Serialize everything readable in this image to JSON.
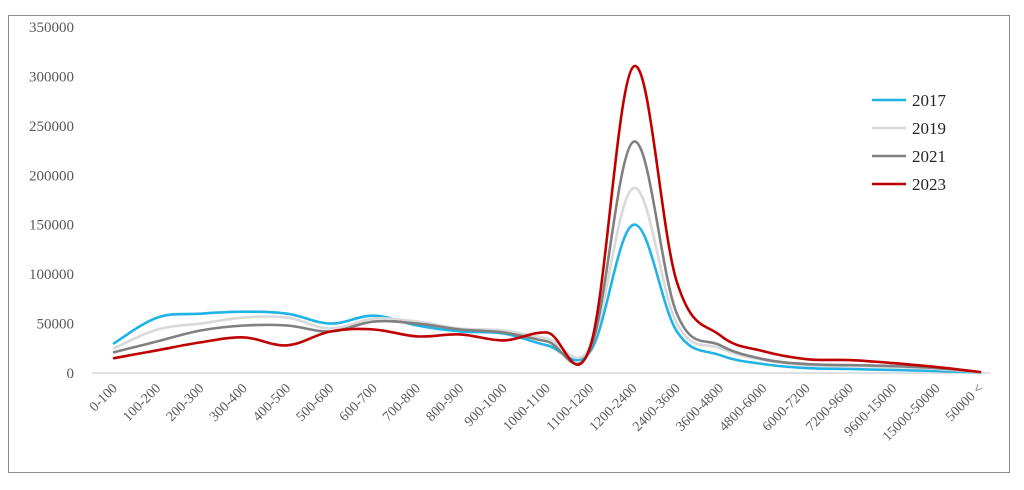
{
  "chart_data": {
    "type": "line",
    "categories": [
      "0-100",
      "100-200",
      "200-300",
      "300-400",
      "400-500",
      "500-600",
      "600-700",
      "700-800",
      "800-900",
      "900-1000",
      "1000-1100",
      "1100-1200",
      "1200-2400",
      "2400-3600",
      "3600-4800",
      "4800-6000",
      "6000-7200",
      "7200-9600",
      "9600-15000",
      "15000-50000",
      "50000 <"
    ],
    "ylim": [
      0,
      350000
    ],
    "yticks": [
      "0",
      "50000",
      "100000",
      "150000",
      "200000",
      "250000",
      "300000",
      "350000"
    ],
    "grid": false,
    "legend_position": "right",
    "series": [
      {
        "name": "2017",
        "color": "#1fb3e6",
        "values": [
          30000,
          56000,
          60000,
          62000,
          60000,
          50000,
          58000,
          48000,
          42000,
          40000,
          28000,
          22000,
          150000,
          42000,
          18000,
          9000,
          5000,
          4000,
          3000,
          2000,
          500
        ]
      },
      {
        "name": "2019",
        "color": "#d9d9d9",
        "values": [
          25000,
          44000,
          50000,
          56000,
          56000,
          45000,
          55000,
          52000,
          45000,
          43000,
          35000,
          26000,
          187000,
          50000,
          25000,
          13000,
          8000,
          7000,
          6000,
          4000,
          800
        ]
      },
      {
        "name": "2021",
        "color": "#808080",
        "values": [
          21000,
          32000,
          43000,
          48000,
          48000,
          42000,
          52000,
          50000,
          44000,
          41000,
          32000,
          24000,
          234000,
          60000,
          28000,
          14000,
          9000,
          8000,
          7000,
          5000,
          1000
        ]
      },
      {
        "name": "2023",
        "color": "#c00000",
        "values": [
          15000,
          23000,
          31000,
          36000,
          28000,
          42000,
          44000,
          37000,
          39000,
          33000,
          41000,
          27000,
          310000,
          92000,
          38000,
          22000,
          14000,
          13000,
          10000,
          6000,
          1000
        ]
      }
    ]
  }
}
